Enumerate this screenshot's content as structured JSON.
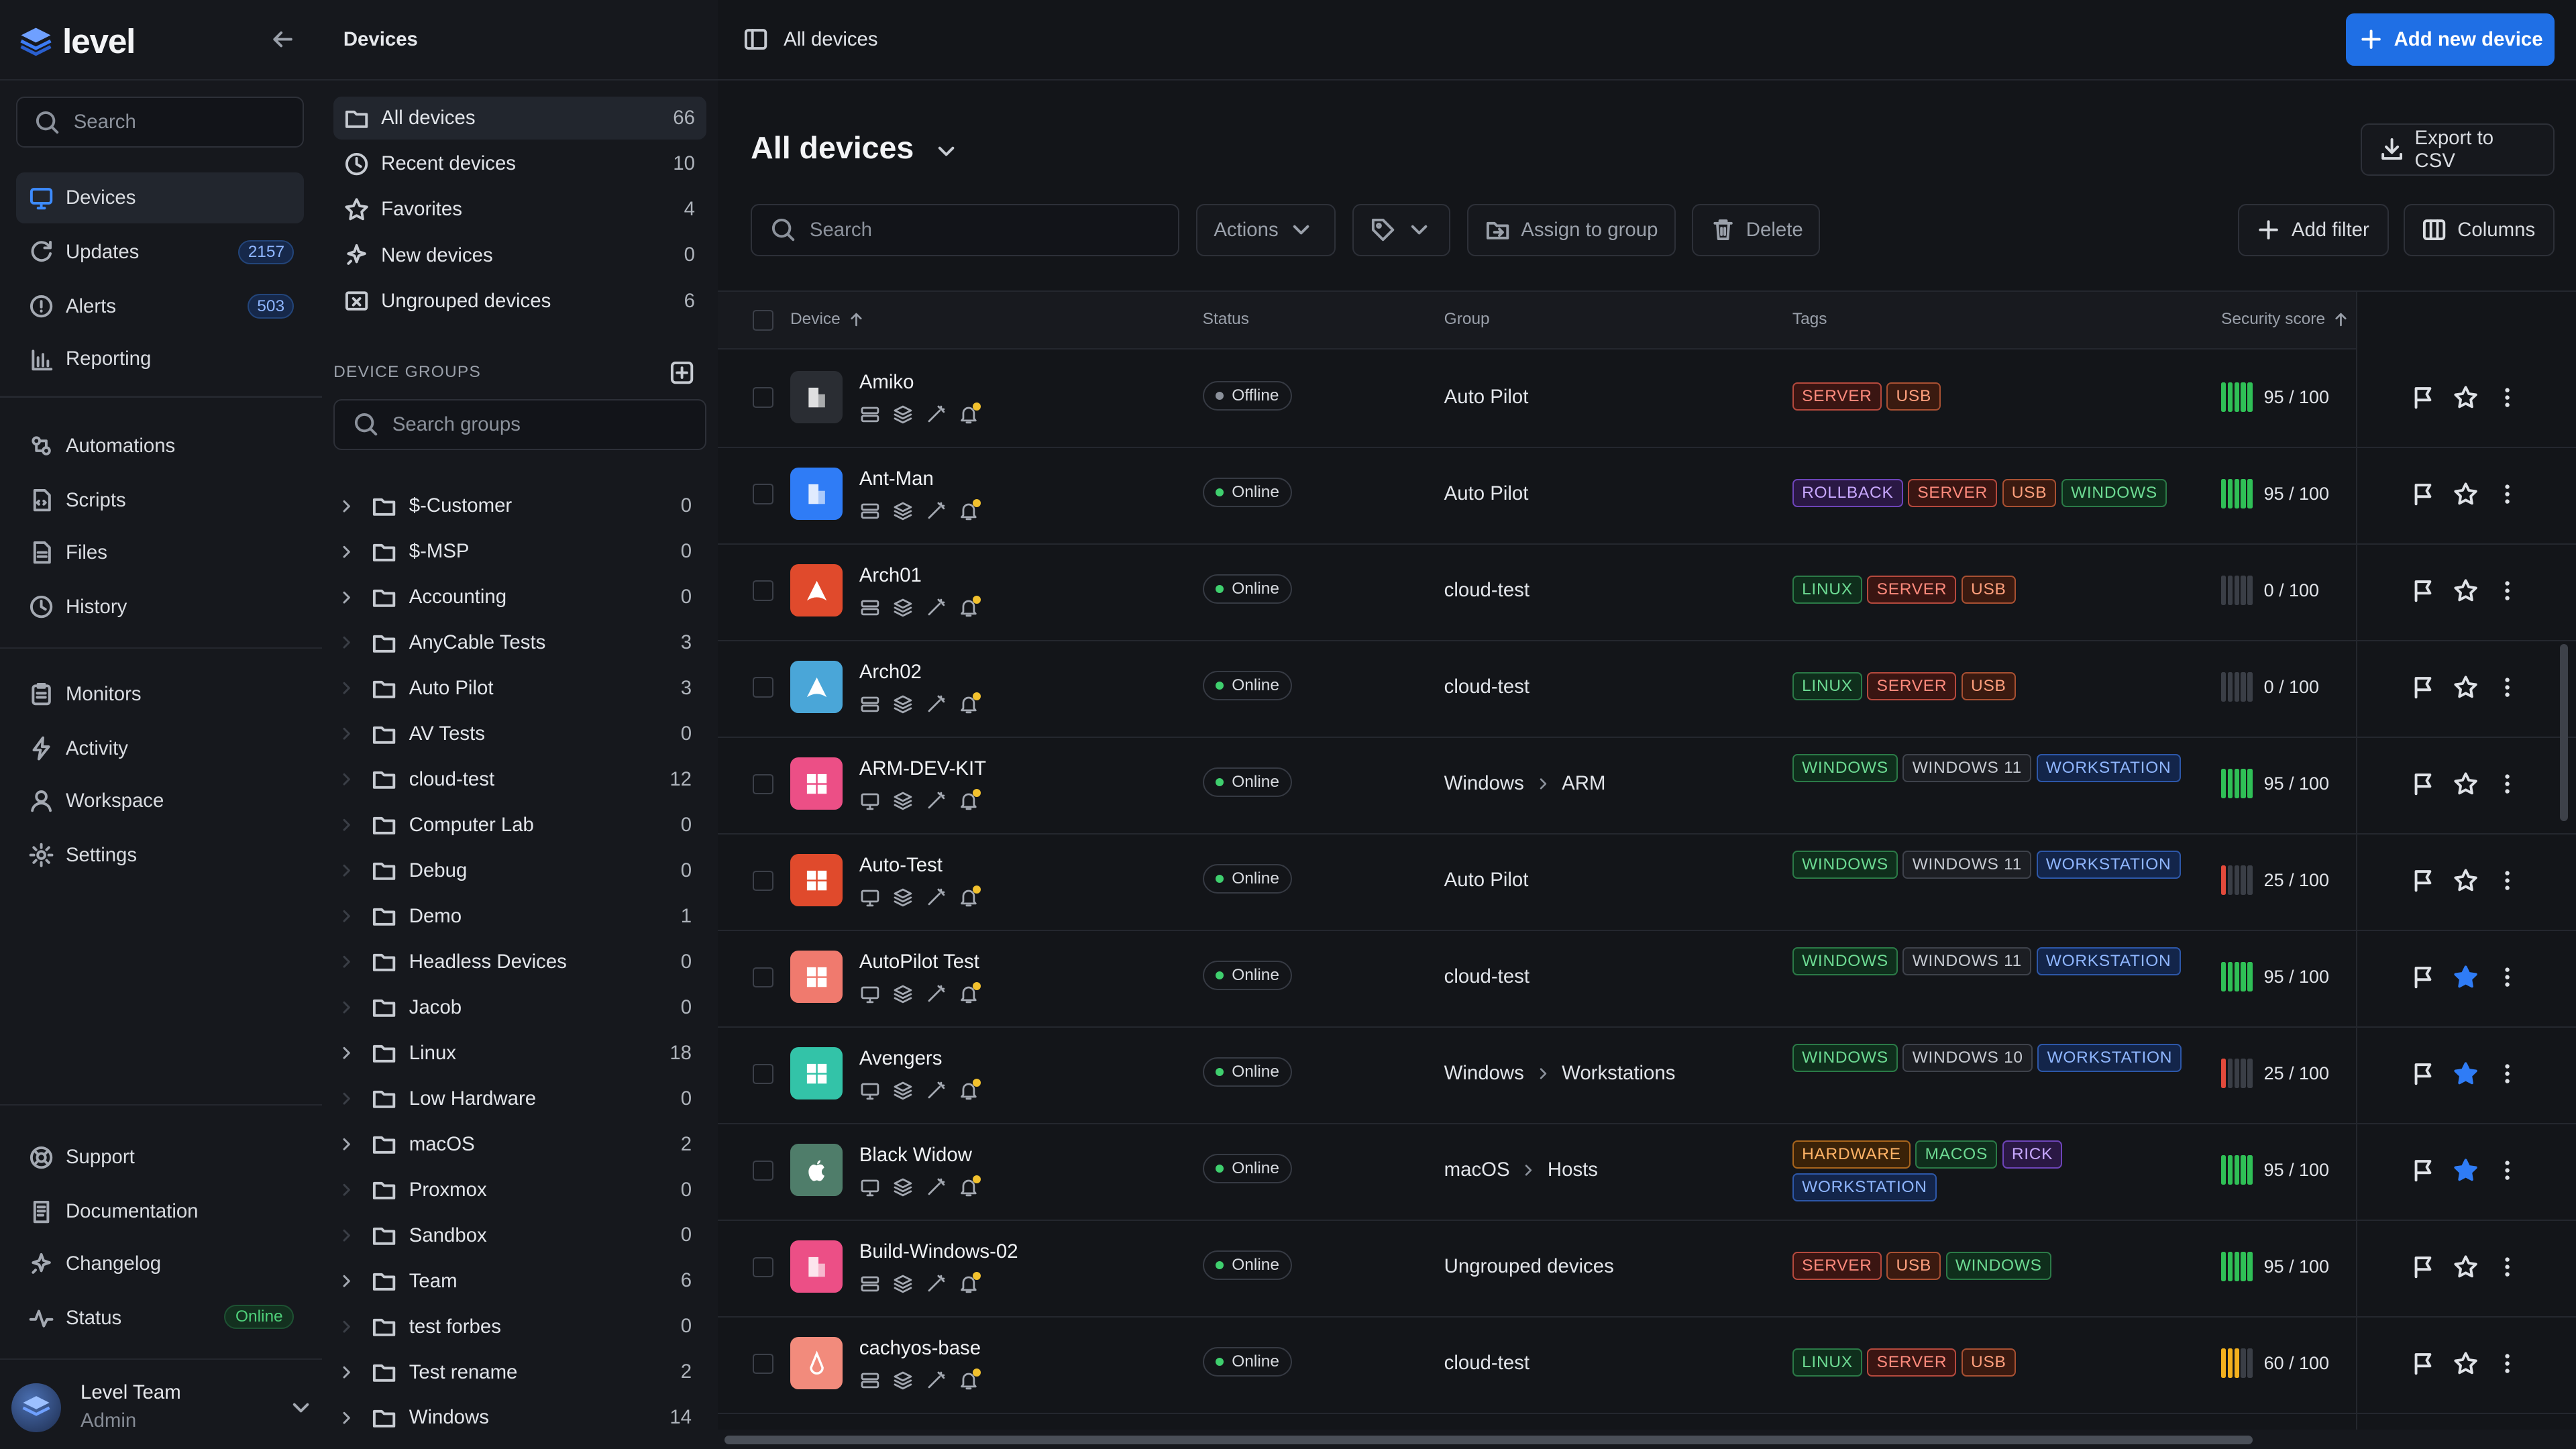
{
  "app": {
    "name": "level"
  },
  "nav": {
    "search_placeholder": "Search",
    "items": [
      {
        "label": "Devices",
        "icon": "monitor-icon",
        "active": true
      },
      {
        "label": "Updates",
        "icon": "refresh-icon",
        "badge": "2157"
      },
      {
        "label": "Alerts",
        "icon": "alert-circle-icon",
        "badge": "503"
      },
      {
        "label": "Reporting",
        "icon": "bar-chart-icon"
      },
      {
        "label": "Automations",
        "icon": "automation-icon"
      },
      {
        "label": "Scripts",
        "icon": "script-icon"
      },
      {
        "label": "Files",
        "icon": "file-icon"
      },
      {
        "label": "History",
        "icon": "history-icon"
      },
      {
        "label": "Monitors",
        "icon": "clipboard-icon"
      },
      {
        "label": "Activity",
        "icon": "bolt-icon"
      },
      {
        "label": "Workspace",
        "icon": "user-icon"
      },
      {
        "label": "Settings",
        "icon": "gear-icon"
      }
    ],
    "bottom": [
      {
        "label": "Support",
        "icon": "lifebuoy-icon"
      },
      {
        "label": "Documentation",
        "icon": "doc-icon"
      },
      {
        "label": "Changelog",
        "icon": "sparkle-icon"
      },
      {
        "label": "Status",
        "icon": "pulse-icon",
        "status": "Online"
      }
    ],
    "user": {
      "name": "Level Team",
      "role": "Admin"
    }
  },
  "panel": {
    "title": "Devices",
    "quick": [
      {
        "label": "All devices",
        "count": "66",
        "icon": "folder-icon",
        "active": true
      },
      {
        "label": "Recent devices",
        "count": "10",
        "icon": "clock-icon"
      },
      {
        "label": "Favorites",
        "count": "4",
        "icon": "star-icon"
      },
      {
        "label": "New devices",
        "count": "0",
        "icon": "sparkle-icon"
      },
      {
        "label": "Ungrouped devices",
        "count": "6",
        "icon": "ungrouped-icon"
      }
    ],
    "groups_header": "DEVICE GROUPS",
    "groups_search_placeholder": "Search groups",
    "groups": [
      {
        "name": "$-Customer",
        "count": "0",
        "expandable": true
      },
      {
        "name": "$-MSP",
        "count": "0",
        "expandable": true
      },
      {
        "name": "Accounting",
        "count": "0",
        "expandable": true
      },
      {
        "name": "AnyCable Tests",
        "count": "3",
        "expandable": false
      },
      {
        "name": "Auto Pilot",
        "count": "3",
        "expandable": false
      },
      {
        "name": "AV Tests",
        "count": "0",
        "expandable": false
      },
      {
        "name": "cloud-test",
        "count": "12",
        "expandable": false
      },
      {
        "name": "Computer Lab",
        "count": "0",
        "expandable": false
      },
      {
        "name": "Debug",
        "count": "0",
        "expandable": false
      },
      {
        "name": "Demo",
        "count": "1",
        "expandable": false
      },
      {
        "name": "Headless Devices",
        "count": "0",
        "expandable": false
      },
      {
        "name": "Jacob",
        "count": "0",
        "expandable": false
      },
      {
        "name": "Linux",
        "count": "18",
        "expandable": true
      },
      {
        "name": "Low Hardware",
        "count": "0",
        "expandable": false
      },
      {
        "name": "macOS",
        "count": "2",
        "expandable": true
      },
      {
        "name": "Proxmox",
        "count": "0",
        "expandable": false
      },
      {
        "name": "Sandbox",
        "count": "0",
        "expandable": false
      },
      {
        "name": "Team",
        "count": "6",
        "expandable": true
      },
      {
        "name": "test forbes",
        "count": "0",
        "expandable": false
      },
      {
        "name": "Test rename",
        "count": "2",
        "expandable": true
      },
      {
        "name": "Windows",
        "count": "14",
        "expandable": true
      }
    ]
  },
  "main": {
    "breadcrumb": "All devices",
    "add_button": "Add new device",
    "title": "All devices",
    "export_button": "Export to CSV",
    "search_placeholder": "Search",
    "actions_button": "Actions",
    "assign_button": "Assign to group",
    "delete_button": "Delete",
    "add_filter_button": "Add filter",
    "columns_button": "Columns",
    "columns": {
      "device": "Device",
      "status": "Status",
      "group": "Group",
      "tags": "Tags",
      "score": "Security score"
    }
  },
  "colors": {
    "accent": "#1f6fe5",
    "online": "#3fcf6e",
    "offline": "#8b919b"
  },
  "devices": [
    {
      "name": "Amiko",
      "os": "server",
      "status": "Offline",
      "group": [
        "Auto Pilot"
      ],
      "tags": [
        "SERVER",
        "USB"
      ],
      "score": "95 / 100",
      "score_value": 95,
      "starred": false
    },
    {
      "name": "Ant-Man",
      "os": "server-blue",
      "status": "Online",
      "group": [
        "Auto Pilot"
      ],
      "tags": [
        "ROLLBACK",
        "SERVER",
        "USB",
        "WINDOWS"
      ],
      "score": "95 / 100",
      "score_value": 95,
      "starred": false
    },
    {
      "name": "Arch01",
      "os": "arch-red",
      "status": "Online",
      "group": [
        "cloud-test"
      ],
      "tags": [
        "LINUX",
        "SERVER",
        "USB"
      ],
      "score": "0 / 100",
      "score_value": 0,
      "starred": false
    },
    {
      "name": "Arch02",
      "os": "arch-blue",
      "status": "Online",
      "group": [
        "cloud-test"
      ],
      "tags": [
        "LINUX",
        "SERVER",
        "USB"
      ],
      "score": "0 / 100",
      "score_value": 0,
      "starred": false
    },
    {
      "name": "ARM-DEV-KIT",
      "os": "windows-pink",
      "status": "Online",
      "group": [
        "Windows",
        "ARM"
      ],
      "tags": [
        "WINDOWS",
        "WINDOWS 11",
        "WORKSTATION"
      ],
      "score": "95 / 100",
      "score_value": 95,
      "starred": false
    },
    {
      "name": "Auto-Test",
      "os": "windows-orange",
      "status": "Online",
      "group": [
        "Auto Pilot"
      ],
      "tags": [
        "WINDOWS",
        "WINDOWS 11",
        "WORKSTATION"
      ],
      "score": "25 / 100",
      "score_value": 25,
      "starred": false
    },
    {
      "name": "AutoPilot Test",
      "os": "windows-salmon",
      "status": "Online",
      "group": [
        "cloud-test"
      ],
      "tags": [
        "WINDOWS",
        "WINDOWS 11",
        "WORKSTATION"
      ],
      "score": "95 / 100",
      "score_value": 95,
      "starred": true
    },
    {
      "name": "Avengers",
      "os": "windows-teal",
      "status": "Online",
      "group": [
        "Windows",
        "Workstations"
      ],
      "tags": [
        "WINDOWS",
        "WINDOWS 10",
        "WORKSTATION"
      ],
      "score": "25 / 100",
      "score_value": 25,
      "starred": true
    },
    {
      "name": "Black Widow",
      "os": "apple",
      "status": "Online",
      "group": [
        "macOS",
        "Hosts"
      ],
      "tags": [
        "HARDWARE",
        "MACOS",
        "RICK",
        "WORKSTATION"
      ],
      "score": "95 / 100",
      "score_value": 95,
      "starred": true
    },
    {
      "name": "Build-Windows-02",
      "os": "server-pink",
      "status": "Online",
      "group": [
        "Ungrouped devices"
      ],
      "tags": [
        "SERVER",
        "USB",
        "WINDOWS"
      ],
      "score": "95 / 100",
      "score_value": 95,
      "starred": false
    },
    {
      "name": "cachyos-base",
      "os": "cachy",
      "status": "Online",
      "group": [
        "cloud-test"
      ],
      "tags": [
        "LINUX",
        "SERVER",
        "USB"
      ],
      "score": "60 / 100",
      "score_value": 60,
      "starred": false
    }
  ]
}
